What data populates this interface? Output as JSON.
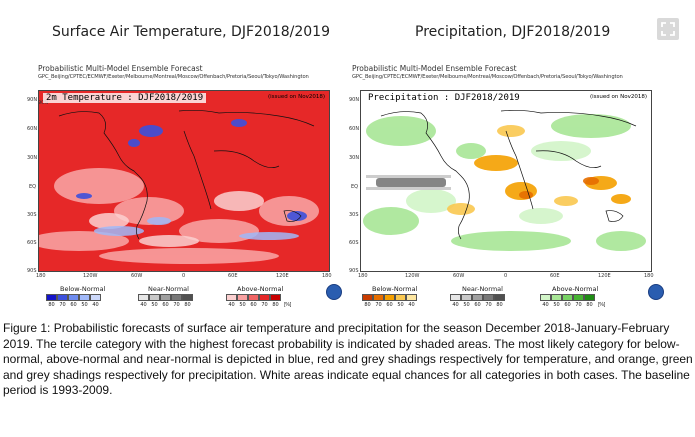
{
  "titles": {
    "left": "Surface Air Temperature, DJF2018/2019",
    "right": "Precipitation, DJF2018/2019"
  },
  "header": {
    "line1": "Probabilistic Multi-Model Ensemble Forecast",
    "line2": "GPC_Beijing/CPTEC/ECMWF/Exeter/Melbourne/Montreal/Moscow/Offenbach/Pretoria/Seoul/Tokyo/Washington"
  },
  "maps": {
    "left": {
      "label": "2m Temperature : DJF2018/2019",
      "issued": "(issued on Nov2018)"
    },
    "right": {
      "label": "Precipitation : DJF2018/2019",
      "issued": "(issued on Nov2018)"
    }
  },
  "axes": {
    "lat": [
      "90N",
      "60N",
      "30N",
      "EQ",
      "30S",
      "60S",
      "90S"
    ],
    "lon": [
      "180",
      "120W",
      "60W",
      "0",
      "60E",
      "120E",
      "180"
    ]
  },
  "legend_left": {
    "below": {
      "title": "Below-Normal",
      "ticks": [
        "80",
        "70",
        "60",
        "50",
        "40"
      ],
      "colors": [
        "#1414c8",
        "#3c50dc",
        "#6e8cf0",
        "#a0b8f8",
        "#cdd9fb"
      ]
    },
    "near": {
      "title": "Near-Normal",
      "ticks": [
        "40",
        "50",
        "60",
        "70",
        "80"
      ],
      "colors": [
        "#e6e6e6",
        "#c8c8c8",
        "#a0a0a0",
        "#787878",
        "#505050"
      ]
    },
    "above": {
      "title": "Above-Normal",
      "ticks": [
        "40",
        "50",
        "60",
        "70",
        "80"
      ],
      "colors": [
        "#fbd0d0",
        "#f8a0a0",
        "#f06464",
        "#e62828",
        "#c80000"
      ]
    },
    "unit": "[%]"
  },
  "legend_right": {
    "below": {
      "title": "Below-Normal",
      "ticks": [
        "80",
        "70",
        "60",
        "50",
        "40"
      ],
      "colors": [
        "#c83c00",
        "#e66e00",
        "#f5a000",
        "#fac850",
        "#fde6a0"
      ]
    },
    "near": {
      "title": "Near-Normal",
      "ticks": [
        "40",
        "50",
        "60",
        "70",
        "80"
      ],
      "colors": [
        "#e6e6e6",
        "#c8c8c8",
        "#a0a0a0",
        "#787878",
        "#505050"
      ]
    },
    "above": {
      "title": "Above-Normal",
      "ticks": [
        "40",
        "50",
        "60",
        "70",
        "80"
      ],
      "colors": [
        "#d2f5c8",
        "#a8e696",
        "#78d264",
        "#46b432",
        "#1e8c14"
      ]
    },
    "unit": "[%]"
  },
  "caption": "Figure 1: Probabilistic forecasts of surface air temperature and precipitation for the season December 2018-January-February 2019.  The tercile category with the highest forecast probability is indicated by shaded areas. The most likely category for below-normal, above-normal and near-normal is depicted in blue, red and grey shadings respectively for temperature, and orange, green and grey shadings respectively for precipitation. White areas indicate equal chances for all categories in both cases.  The baseline period is 1993-2009.",
  "colors": {
    "temp_base": "#e01e1e",
    "temp_light": "#f8a0a0",
    "temp_blue": "#3c50dc",
    "precip_green": "#a8e696",
    "precip_orange": "#f5a000"
  }
}
